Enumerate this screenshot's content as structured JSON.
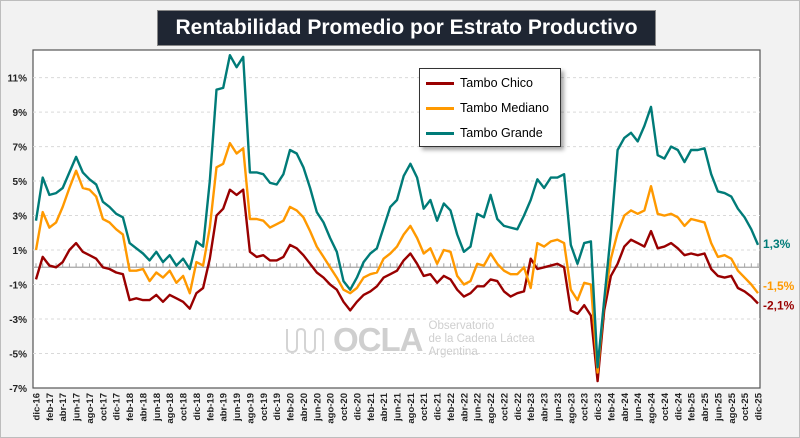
{
  "chart_data": {
    "type": "line",
    "title": "Rentabilidad Promedio por Estrato Productivo",
    "xlabel": "",
    "ylabel": "",
    "ylim": [
      -7,
      12.6
    ],
    "yticks": [
      -7,
      -5,
      -3,
      -1,
      1,
      3,
      5,
      7,
      9,
      11
    ],
    "ytick_labels": [
      "-7%",
      "-5%",
      "-3%",
      "-1%",
      "1%",
      "3%",
      "5%",
      "7%",
      "9%",
      "11%"
    ],
    "grid": true,
    "legend_position": "top-center-right",
    "x_tick_labels": [
      "dic-16",
      "feb-17",
      "abr-17",
      "jun-17",
      "ago-17",
      "oct-17",
      "dic-17",
      "feb-18",
      "abr-18",
      "jun-18",
      "ago-18",
      "oct-18",
      "dic-18",
      "feb-19",
      "abr-19",
      "jun-19",
      "ago-19",
      "oct-19",
      "dic-19",
      "feb-20",
      "abr-20",
      "jun-20",
      "ago-20",
      "oct-20",
      "dic-20",
      "feb-21",
      "abr-21",
      "jun-21",
      "ago-21",
      "oct-21",
      "dic-21",
      "feb-22",
      "abr-22",
      "jun-22",
      "ago-22",
      "oct-22",
      "dic-22",
      "feb-23",
      "abr-23",
      "jun-23",
      "ago-23",
      "oct-23",
      "dic-23",
      "feb-24",
      "abr-24",
      "jun-24",
      "ago-24",
      "oct-24",
      "dic-24",
      "feb-25",
      "abr-25",
      "jun-25",
      "ago-25",
      "oct-25",
      "dic-25"
    ],
    "x_start": "dic-16",
    "x_end": "dic-25",
    "frequency": "monthly",
    "series": [
      {
        "name": "Tambo Chico",
        "color": "#990000",
        "end_label": "-2,1%",
        "values": [
          -0.7,
          0.6,
          0.1,
          0.0,
          0.3,
          1.0,
          1.4,
          0.9,
          0.7,
          0.5,
          0.0,
          -0.1,
          -0.3,
          -0.4,
          -1.9,
          -1.8,
          -1.9,
          -1.9,
          -1.6,
          -2.0,
          -1.6,
          -1.8,
          -2.0,
          -2.4,
          -1.5,
          -1.2,
          0.5,
          3.0,
          3.4,
          4.5,
          4.2,
          4.5,
          0.9,
          0.6,
          0.7,
          0.4,
          0.4,
          0.6,
          1.3,
          1.1,
          0.7,
          0.2,
          -0.3,
          -0.6,
          -1.0,
          -1.3,
          -2.0,
          -2.5,
          -2.0,
          -1.6,
          -1.4,
          -1.1,
          -0.6,
          -0.4,
          -0.2,
          0.4,
          0.8,
          0.2,
          -0.5,
          -0.4,
          -0.9,
          -0.5,
          -0.7,
          -1.3,
          -1.7,
          -1.5,
          -1.1,
          -1.1,
          -0.7,
          -0.8,
          -1.4,
          -1.7,
          -1.5,
          -1.4,
          0.5,
          -0.1,
          0.0,
          0.1,
          0.2,
          0.0,
          -2.5,
          -2.7,
          -2.2,
          -2.8,
          -6.6,
          -2.5,
          -0.5,
          0.2,
          1.2,
          1.6,
          1.4,
          1.2,
          2.1,
          1.1,
          1.2,
          1.4,
          1.1,
          0.7,
          0.8,
          0.7,
          0.8,
          -0.1,
          -0.5,
          -0.6,
          -0.5,
          -1.2,
          -1.4,
          -1.7,
          -2.1
        ]
      },
      {
        "name": "Tambo Mediano",
        "color": "#ff9900",
        "end_label": "-1,5%",
        "values": [
          1.0,
          3.2,
          2.3,
          2.6,
          3.5,
          4.6,
          5.6,
          4.6,
          4.5,
          4.1,
          2.8,
          2.6,
          2.2,
          1.9,
          -0.2,
          -0.2,
          -0.1,
          -0.8,
          -0.3,
          -0.6,
          -0.2,
          -0.9,
          -0.5,
          -1.5,
          0.3,
          0.1,
          2.3,
          5.8,
          6.0,
          7.2,
          6.6,
          6.9,
          2.8,
          2.8,
          2.7,
          2.3,
          2.5,
          2.7,
          3.5,
          3.3,
          2.9,
          2.1,
          1.2,
          0.6,
          0.0,
          -0.6,
          -1.3,
          -1.5,
          -1.2,
          -0.6,
          -0.4,
          -0.3,
          0.5,
          0.8,
          1.2,
          1.9,
          2.4,
          1.7,
          0.8,
          1.1,
          0.2,
          1.0,
          0.9,
          -0.5,
          -1.0,
          -0.8,
          0.2,
          0.1,
          0.8,
          0.2,
          -0.2,
          -0.4,
          -0.4,
          0.0,
          -1.2,
          1.4,
          1.2,
          1.5,
          1.6,
          1.4,
          -1.3,
          -1.9,
          -0.9,
          -1.0,
          -6.1,
          -2.0,
          0.5,
          2.0,
          3.0,
          3.3,
          3.1,
          3.3,
          4.7,
          3.1,
          3.0,
          3.1,
          2.9,
          2.4,
          2.8,
          2.7,
          2.6,
          1.4,
          0.6,
          0.7,
          0.5,
          -0.2,
          -0.6,
          -1.0,
          -1.5
        ]
      },
      {
        "name": "Tambo Grande",
        "color": "#007b78",
        "end_label": "1,3%",
        "values": [
          2.7,
          5.2,
          4.2,
          4.3,
          4.6,
          5.5,
          6.4,
          5.5,
          5.1,
          4.8,
          3.8,
          3.5,
          3.1,
          2.9,
          1.4,
          1.1,
          0.8,
          0.4,
          0.9,
          0.3,
          0.7,
          0.1,
          0.5,
          -0.1,
          1.5,
          1.2,
          5.0,
          10.3,
          10.4,
          12.3,
          11.6,
          12.2,
          5.5,
          5.5,
          5.4,
          4.9,
          4.8,
          5.4,
          6.8,
          6.6,
          5.8,
          4.6,
          3.2,
          2.6,
          1.7,
          0.9,
          -0.8,
          -1.3,
          -0.6,
          0.3,
          0.8,
          1.1,
          2.3,
          3.5,
          3.9,
          5.3,
          6.0,
          5.2,
          3.4,
          3.9,
          2.7,
          3.7,
          3.3,
          1.9,
          0.9,
          1.2,
          3.1,
          2.9,
          4.2,
          2.8,
          2.4,
          2.3,
          2.2,
          3.0,
          3.9,
          5.1,
          4.6,
          5.2,
          5.2,
          5.4,
          1.3,
          0.2,
          1.4,
          1.5,
          -5.8,
          -1.9,
          2.0,
          6.8,
          7.5,
          7.8,
          7.3,
          8.2,
          9.3,
          6.5,
          6.3,
          7.0,
          6.8,
          6.1,
          6.8,
          6.8,
          6.9,
          5.4,
          4.4,
          4.3,
          4.1,
          3.4,
          2.9,
          2.2,
          1.3
        ]
      }
    ]
  },
  "watermark": {
    "logo": "OCLA",
    "line1": "Observatorio",
    "line2": "de la Cadena Láctea",
    "line3": "Argentina"
  }
}
